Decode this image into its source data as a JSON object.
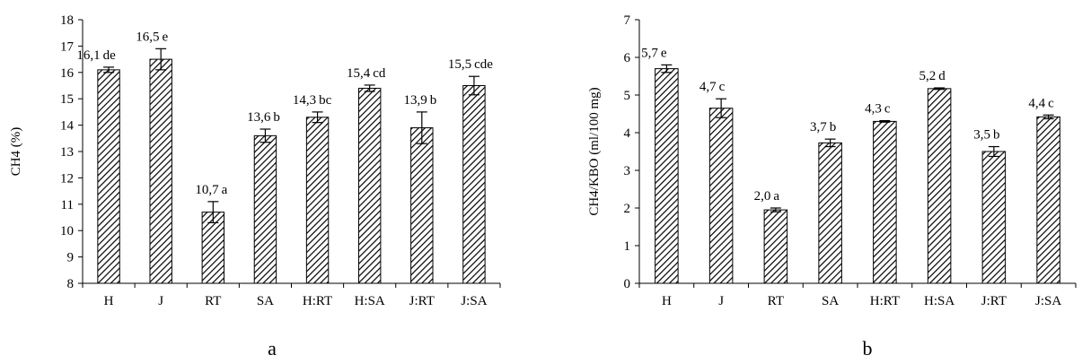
{
  "chart_data": [
    {
      "type": "bar",
      "panel_label": "a",
      "ylabel": "CH4 (%)",
      "xlabel": "",
      "ylim": [
        8,
        18
      ],
      "ytick_step": 1,
      "categories": [
        "H",
        "J",
        "RT",
        "SA",
        "H:RT",
        "H:SA",
        "J:RT",
        "J:SA"
      ],
      "values": [
        16.1,
        16.5,
        10.7,
        13.6,
        14.3,
        15.4,
        13.9,
        15.5
      ],
      "errors": [
        0.1,
        0.4,
        0.4,
        0.25,
        0.2,
        0.12,
        0.6,
        0.35
      ],
      "data_labels": [
        "16,1",
        "16,5",
        "10,7",
        "13,6",
        "14,3",
        "15,4",
        "13,9",
        "15,5"
      ],
      "significance_letters": [
        "de",
        "e",
        "a",
        "b",
        "bc",
        "cd",
        "b",
        "cde"
      ],
      "bar_pattern": "diagonal-hatch",
      "grid": false,
      "legend": "none"
    },
    {
      "type": "bar",
      "panel_label": "b",
      "ylabel": "CH4/KBO (ml/100 mg)",
      "xlabel": "",
      "ylim": [
        0,
        7
      ],
      "ytick_step": 1,
      "categories": [
        "H",
        "J",
        "RT",
        "SA",
        "H:RT",
        "H:SA",
        "J:RT",
        "J:SA"
      ],
      "values": [
        5.7,
        4.65,
        1.95,
        3.73,
        4.3,
        5.17,
        3.5,
        4.42
      ],
      "errors": [
        0.1,
        0.25,
        0.05,
        0.1,
        0.02,
        0.02,
        0.13,
        0.05
      ],
      "data_labels": [
        "5,7",
        "4,7",
        "2,0",
        "3,7",
        "4,3",
        "5,2",
        "3,5",
        "4,4"
      ],
      "significance_letters": [
        "e",
        "c",
        "a",
        "b",
        "c",
        "d",
        "b",
        "c"
      ],
      "bar_pattern": "diagonal-hatch",
      "grid": false,
      "legend": "none"
    }
  ]
}
